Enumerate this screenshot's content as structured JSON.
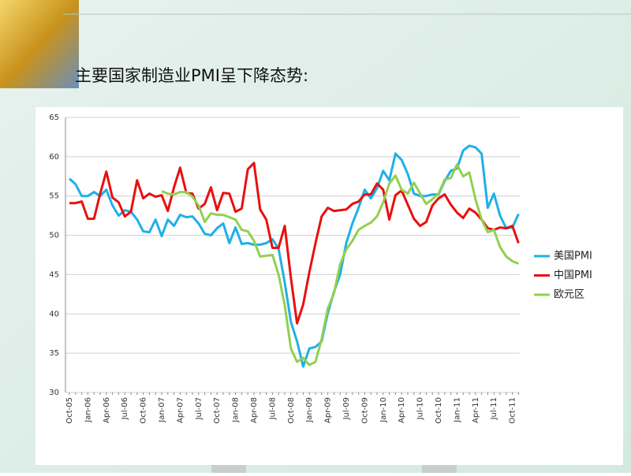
{
  "chart_data": {
    "type": "line",
    "title": "主要国家制造业PMI呈下降态势:",
    "categories": [
      "Oct-05",
      null,
      null,
      "Jan-06",
      null,
      null,
      "Apr-06",
      null,
      null,
      "Jul-06",
      null,
      null,
      "Oct-06",
      null,
      null,
      "Jan-07",
      null,
      null,
      "Apr-07",
      null,
      null,
      "Jul-07",
      null,
      null,
      "Oct-07",
      null,
      null,
      "Jan-08",
      null,
      null,
      "Apr-08",
      null,
      null,
      "Jul-08",
      null,
      null,
      "Oct-08",
      null,
      null,
      "Jan-09",
      null,
      null,
      "Apr-09",
      null,
      null,
      "Jul-09",
      null,
      null,
      "Oct-09",
      null,
      null,
      "Jan-10",
      null,
      null,
      "Apr-10",
      null,
      null,
      "Jul-10",
      null,
      null,
      "Oct-10",
      null,
      null,
      "Jan-11",
      null,
      null,
      "Apr-11",
      null,
      null,
      "Jul-11",
      null,
      null,
      "Oct-11",
      null
    ],
    "series": [
      {
        "name": "美国PMI",
        "color": "#1fb0e8",
        "values": [
          57.2,
          56.5,
          55.0,
          55.0,
          55.5,
          55.0,
          55.8,
          53.8,
          52.5,
          53.2,
          53.0,
          52.0,
          50.5,
          50.4,
          52.0,
          49.9,
          52.0,
          51.2,
          52.6,
          52.3,
          52.4,
          51.5,
          50.2,
          50.0,
          50.9,
          51.5,
          49.0,
          51.0,
          48.9,
          49.0,
          48.8,
          48.8,
          49.0,
          49.5,
          48.3,
          44.0,
          39.0,
          36.5,
          33.3,
          35.6,
          35.8,
          36.5,
          40.1,
          42.8,
          45.0,
          49.0,
          51.5,
          53.5,
          55.8,
          54.7,
          56.0,
          58.2,
          57.0,
          60.4,
          59.6,
          57.8,
          55.3,
          55.0,
          55.0,
          55.2,
          55.2,
          56.9,
          58.2,
          58.5,
          60.8,
          61.4,
          61.2,
          60.4,
          53.5,
          55.3,
          52.5,
          50.9,
          51.0,
          52.7
        ]
      },
      {
        "name": "中国PMI",
        "color": "#e8100f",
        "values": [
          54.1,
          54.1,
          54.3,
          52.1,
          52.1,
          55.3,
          58.1,
          54.8,
          54.2,
          52.4,
          53.0,
          57.0,
          54.7,
          55.3,
          54.9,
          55.1,
          53.1,
          56.1,
          58.6,
          55.4,
          55.3,
          53.4,
          54.0,
          56.1,
          53.2,
          55.4,
          55.3,
          53.0,
          53.4,
          58.4,
          59.2,
          53.3,
          52.0,
          48.4,
          48.4,
          51.2,
          44.6,
          38.8,
          41.2,
          45.3,
          49.0,
          52.4,
          53.5,
          53.1,
          53.2,
          53.3,
          54.0,
          54.3,
          55.2,
          55.2,
          56.6,
          55.8,
          52.0,
          55.1,
          55.7,
          53.9,
          52.1,
          51.2,
          51.7,
          53.8,
          54.7,
          55.2,
          53.9,
          52.9,
          52.2,
          53.4,
          52.9,
          52.0,
          50.9,
          50.7,
          51.0,
          50.9,
          51.2,
          49.0
        ]
      },
      {
        "name": "欧元区",
        "color": "#92d050",
        "values": [
          null,
          null,
          null,
          null,
          null,
          null,
          null,
          null,
          null,
          null,
          null,
          null,
          null,
          null,
          null,
          55.6,
          55.3,
          55.2,
          55.5,
          55.5,
          54.9,
          53.8,
          51.7,
          52.8,
          52.6,
          52.6,
          52.3,
          52.0,
          50.7,
          50.5,
          49.3,
          47.3,
          47.4,
          47.5,
          45.0,
          41.1,
          35.6,
          33.9,
          34.4,
          33.5,
          33.9,
          36.8,
          40.7,
          42.6,
          46.3,
          48.2,
          49.3,
          50.7,
          51.2,
          51.6,
          52.4,
          54.2,
          56.6,
          57.6,
          55.8,
          55.3,
          56.7,
          55.3,
          54.0,
          54.6,
          55.3,
          57.1,
          57.3,
          59.0,
          57.5,
          58.0,
          54.6,
          52.0,
          50.4,
          50.7,
          48.5,
          47.3,
          46.7,
          46.4
        ]
      }
    ],
    "ylim": [
      30,
      65
    ],
    "yticks": [
      30,
      35,
      40,
      45,
      50,
      55,
      60,
      65
    ],
    "grid": true,
    "legend": "right"
  }
}
